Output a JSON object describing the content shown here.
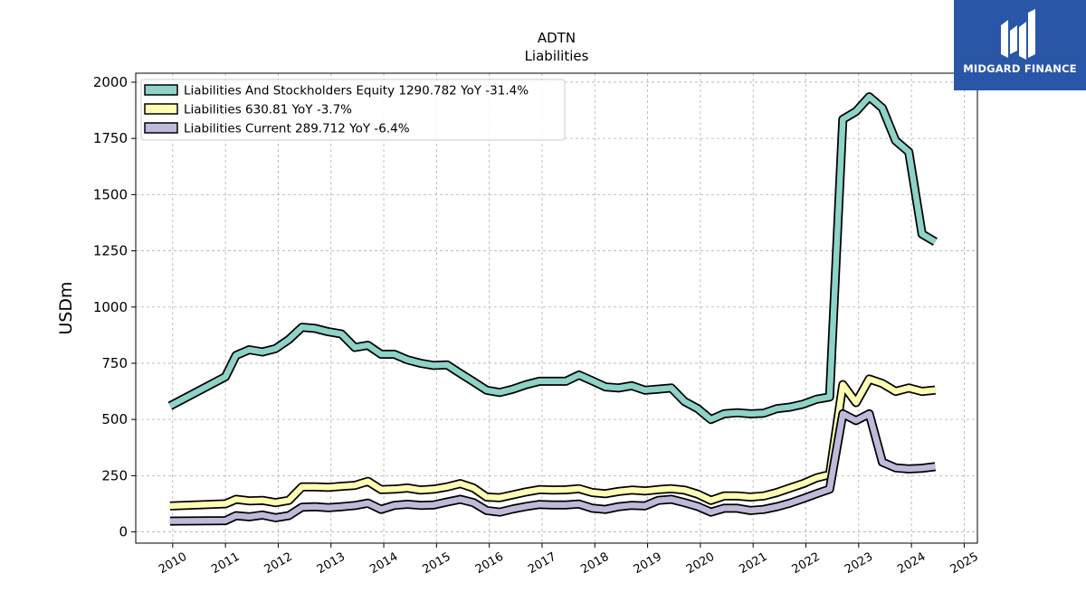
{
  "chart_data": {
    "type": "line",
    "title": "ADTN",
    "subtitle": "Liabilities",
    "ylabel": "USDm",
    "xlabel": "",
    "ylim": [
      -50,
      2040
    ],
    "xlim": [
      2009.3,
      2025.25
    ],
    "yticks": [
      0,
      250,
      500,
      750,
      1000,
      1250,
      1500,
      1750,
      2000
    ],
    "xticks": [
      "2010",
      "2011",
      "2012",
      "2013",
      "2014",
      "2015",
      "2016",
      "2017",
      "2018",
      "2019",
      "2020",
      "2021",
      "2022",
      "2023",
      "2024",
      "2025"
    ],
    "grid": true,
    "legend_position": "top-left",
    "series": [
      {
        "name": "Liabilities And Stockholders Equity",
        "legend": "Liabilities And Stockholders Equity  1290.782 YoY -31.4%",
        "color": "#8dd3c7",
        "x": [
          2009.95,
          2011.0,
          2011.2,
          2011.45,
          2011.7,
          2011.95,
          2012.2,
          2012.45,
          2012.7,
          2012.95,
          2013.2,
          2013.45,
          2013.7,
          2013.95,
          2014.2,
          2014.45,
          2014.7,
          2014.95,
          2015.2,
          2015.45,
          2015.7,
          2015.95,
          2016.2,
          2016.45,
          2016.7,
          2016.95,
          2017.2,
          2017.45,
          2017.7,
          2017.95,
          2018.2,
          2018.45,
          2018.7,
          2018.95,
          2019.2,
          2019.45,
          2019.7,
          2019.95,
          2020.2,
          2020.45,
          2020.7,
          2020.95,
          2021.2,
          2021.45,
          2021.7,
          2021.95,
          2022.2,
          2022.45,
          2022.7,
          2022.95,
          2023.2,
          2023.45,
          2023.7,
          2023.95,
          2024.2,
          2024.45
        ],
        "values": [
          560,
          690,
          785,
          810,
          800,
          815,
          855,
          910,
          905,
          890,
          880,
          820,
          830,
          790,
          790,
          765,
          750,
          740,
          743,
          705,
          668,
          630,
          620,
          635,
          655,
          670,
          670,
          670,
          698,
          672,
          645,
          640,
          650,
          630,
          635,
          640,
          580,
          548,
          500,
          525,
          530,
          525,
          528,
          548,
          555,
          568,
          590,
          600,
          1835,
          1870,
          1935,
          1885,
          1740,
          1690,
          1325,
          1290
        ]
      },
      {
        "name": "Liabilities",
        "legend": "Liabilities  630.81 YoY -3.7%",
        "color": "#ffffb3",
        "x": [
          2009.95,
          2011.0,
          2011.2,
          2011.45,
          2011.7,
          2011.95,
          2012.2,
          2012.45,
          2012.7,
          2012.95,
          2013.2,
          2013.45,
          2013.7,
          2013.95,
          2014.2,
          2014.45,
          2014.7,
          2014.95,
          2015.2,
          2015.45,
          2015.7,
          2015.95,
          2016.2,
          2016.45,
          2016.7,
          2016.95,
          2017.2,
          2017.45,
          2017.7,
          2017.95,
          2018.2,
          2018.45,
          2018.7,
          2018.95,
          2019.2,
          2019.45,
          2019.7,
          2019.95,
          2020.2,
          2020.45,
          2020.7,
          2020.95,
          2021.2,
          2021.45,
          2021.7,
          2021.95,
          2022.2,
          2022.45,
          2022.7,
          2022.95,
          2023.2,
          2023.45,
          2023.7,
          2023.95,
          2024.2,
          2024.45
        ],
        "values": [
          115,
          125,
          145,
          138,
          140,
          130,
          140,
          200,
          200,
          198,
          203,
          207,
          225,
          188,
          190,
          195,
          186,
          190,
          200,
          215,
          195,
          155,
          152,
          165,
          178,
          188,
          186,
          187,
          192,
          175,
          170,
          180,
          186,
          182,
          188,
          192,
          186,
          168,
          140,
          160,
          160,
          155,
          160,
          175,
          195,
          215,
          240,
          255,
          655,
          575,
          680,
          660,
          625,
          640,
          625,
          631
        ]
      },
      {
        "name": "Liabilities Current",
        "legend": "Liabilities Current  289.712 YoY -6.4%",
        "color": "#bebada",
        "x": [
          2009.95,
          2011.0,
          2011.2,
          2011.45,
          2011.7,
          2011.95,
          2012.2,
          2012.45,
          2012.7,
          2012.95,
          2013.2,
          2013.45,
          2013.7,
          2013.95,
          2014.2,
          2014.45,
          2014.7,
          2014.95,
          2015.2,
          2015.45,
          2015.7,
          2015.95,
          2016.2,
          2016.45,
          2016.7,
          2016.95,
          2017.2,
          2017.45,
          2017.7,
          2017.95,
          2018.2,
          2018.45,
          2018.7,
          2018.95,
          2019.2,
          2019.45,
          2019.7,
          2019.95,
          2020.2,
          2020.45,
          2020.7,
          2020.95,
          2021.2,
          2021.45,
          2021.7,
          2021.95,
          2022.2,
          2022.45,
          2022.7,
          2022.95,
          2023.2,
          2023.45,
          2023.7,
          2023.95,
          2024.2,
          2024.45
        ],
        "values": [
          48,
          50,
          72,
          67,
          75,
          63,
          72,
          110,
          112,
          108,
          112,
          117,
          128,
          100,
          118,
          123,
          118,
          120,
          133,
          145,
          130,
          95,
          88,
          102,
          113,
          122,
          120,
          120,
          124,
          105,
          100,
          112,
          118,
          116,
          140,
          145,
          130,
          113,
          88,
          105,
          105,
          95,
          100,
          112,
          128,
          148,
          170,
          190,
          525,
          495,
          525,
          310,
          285,
          280,
          283,
          290
        ]
      }
    ]
  },
  "logo": {
    "text": "MIDGARD FINANCE",
    "background": "#2a56a8"
  }
}
